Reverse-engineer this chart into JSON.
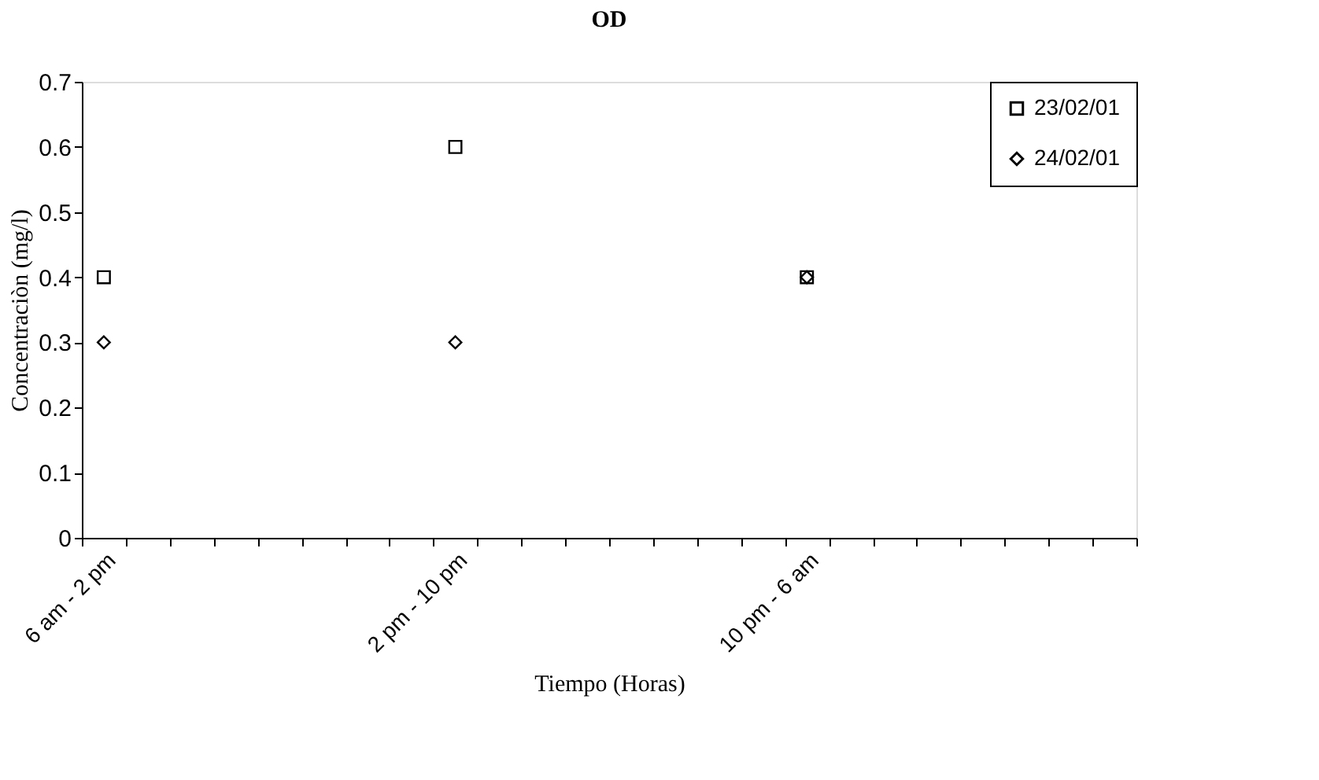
{
  "chart_data": {
    "type": "scatter",
    "title": "OD",
    "xlabel": "Tiempo (Horas)",
    "ylabel": "Concentraciòn (mg/l)",
    "categories": [
      "6 am - 2 pm",
      null,
      null,
      null,
      null,
      null,
      null,
      null,
      "2 pm - 10 pm",
      null,
      null,
      null,
      null,
      null,
      null,
      null,
      "10 pm - 6 am",
      null,
      null,
      null,
      null,
      null,
      null,
      null
    ],
    "series": [
      {
        "name": "23/02/01",
        "color": "#000000",
        "marker": "square",
        "values": [
          0.4,
          null,
          null,
          null,
          null,
          null,
          null,
          null,
          0.6,
          null,
          null,
          null,
          null,
          null,
          null,
          null,
          0.4,
          null,
          null,
          null,
          null,
          null,
          null,
          null
        ]
      },
      {
        "name": "24/02/01",
        "color": "#000000",
        "marker": "diamond",
        "values": [
          0.3,
          null,
          null,
          null,
          null,
          null,
          null,
          null,
          0.3,
          null,
          null,
          null,
          null,
          null,
          null,
          null,
          0.4,
          null,
          null,
          null,
          null,
          null,
          null,
          null
        ]
      }
    ],
    "ylim": [
      0,
      0.7
    ],
    "yticks": [
      0,
      0.1,
      0.2,
      0.3,
      0.4,
      0.5,
      0.6,
      0.7
    ],
    "grid": false,
    "legend": "top right"
  }
}
